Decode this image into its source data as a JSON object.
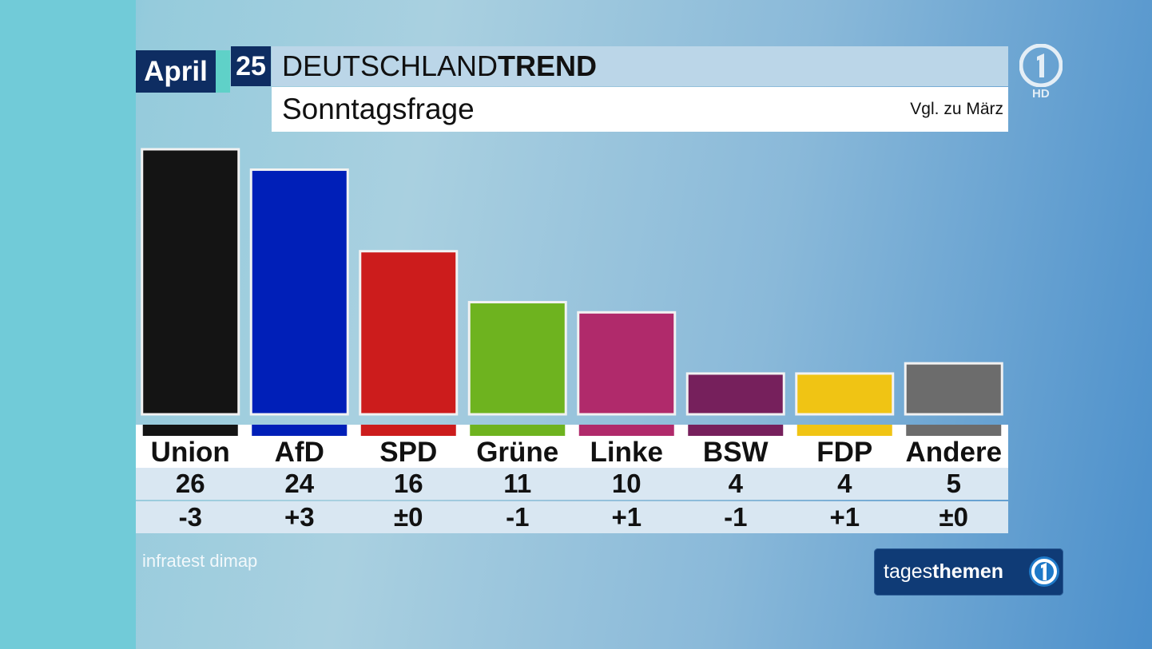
{
  "header": {
    "month": "April",
    "day": "25",
    "title_light": "DEUTSCHLAND",
    "title_bold": "TREND",
    "subtitle": "Sonntagsfrage",
    "comparison": "Vgl. zu März"
  },
  "channel_logo": {
    "icon": "ard-1-logo-icon",
    "hd_label": "HD"
  },
  "chart_data": {
    "type": "bar",
    "title": "Sonntagsfrage",
    "categories": [
      "Union",
      "AfD",
      "SPD",
      "Grüne",
      "Linke",
      "BSW",
      "FDP",
      "Andere"
    ],
    "values": [
      26,
      24,
      16,
      11,
      10,
      4,
      4,
      5
    ],
    "value_labels": [
      "26",
      "24",
      "16",
      "11",
      "10",
      "4",
      "4",
      "5"
    ],
    "changes": [
      "-3",
      "+3",
      "±0",
      "-1",
      "+1",
      "-1",
      "+1",
      "±0"
    ],
    "colors": [
      "#141414",
      "#001fb8",
      "#cc1c1c",
      "#6eb31f",
      "#b02a6b",
      "#76205c",
      "#f0c414",
      "#6c6c6c"
    ],
    "ylim": [
      0,
      26
    ],
    "grid": false,
    "legend": "none"
  },
  "footer": {
    "source": "infratest dimap",
    "show_logo_light": "tages",
    "show_logo_bold": "themen",
    "show_logo_icon": "ard-1-circle-icon"
  }
}
